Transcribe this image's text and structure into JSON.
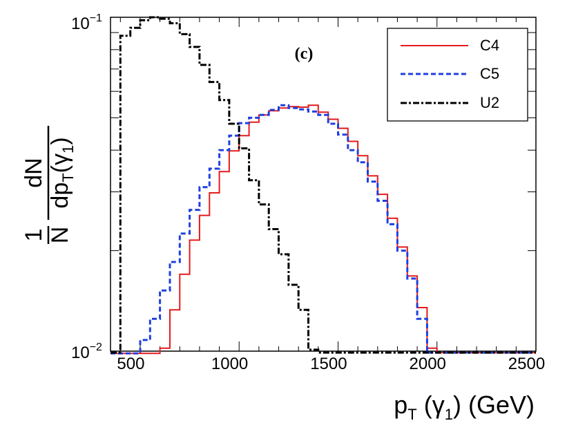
{
  "chart_data": {
    "type": "line",
    "step": true,
    "annotation": "(c)",
    "xlabel": "p_T (γ_1) (GeV)",
    "xlabel_parts": {
      "p": "p",
      "T": "T",
      "open": " (γ",
      "one": "1",
      "close": ") (GeV)"
    },
    "ylabel_parts": {
      "one": "1",
      "N": "N",
      "dN": "dN",
      "dp": "dp",
      "T": "T",
      "gamma": "(γ",
      "sub1": "1",
      "close": ")"
    },
    "xlim": [
      350,
      2500
    ],
    "ylim": [
      0.01,
      0.1
    ],
    "yscale": "log",
    "xticks": [
      500,
      1000,
      1500,
      2000,
      2500
    ],
    "xtick_labels": [
      "500",
      "1000",
      "1500",
      "2000",
      "2500"
    ],
    "ytick_labels": [
      {
        "value": 0.1,
        "base": "10",
        "exp": "−1"
      },
      {
        "value": 0.01,
        "base": "10",
        "exp": "−2"
      }
    ],
    "bin_edges": [
      350,
      400,
      450,
      500,
      550,
      600,
      650,
      700,
      750,
      800,
      850,
      900,
      950,
      1000,
      1050,
      1100,
      1150,
      1200,
      1250,
      1300,
      1350,
      1400,
      1450,
      1500,
      1550,
      1600,
      1650,
      1700,
      1750,
      1800,
      1850,
      1900,
      1950,
      2000,
      2050,
      2100,
      2150,
      2200,
      2250,
      2300,
      2350,
      2400,
      2450,
      2500
    ],
    "legend": {
      "position": "top-right"
    },
    "series": [
      {
        "name": "C4",
        "color": "#e41a1c",
        "dash": "solid",
        "values": [
          0.0098,
          0.0098,
          0.0098,
          0.0098,
          0.0098,
          0.0102,
          0.0133,
          0.017,
          0.0215,
          0.0255,
          0.0298,
          0.0345,
          0.0398,
          0.0442,
          0.0485,
          0.051,
          0.0525,
          0.0535,
          0.054,
          0.0538,
          0.0545,
          0.052,
          0.0495,
          0.0465,
          0.0425,
          0.0385,
          0.0335,
          0.0295,
          0.025,
          0.0205,
          0.0168,
          0.0135,
          0.0102,
          0.0099,
          0.0099,
          0.0099,
          0.0099,
          0.0099,
          0.0099,
          0.0099,
          0.0099,
          0.0099,
          0.0099
        ]
      },
      {
        "name": "C5",
        "color": "#1f3fe0",
        "dash": "dashed",
        "values": [
          0.0098,
          0.0098,
          0.0098,
          0.0108,
          0.0125,
          0.0152,
          0.0185,
          0.0225,
          0.0265,
          0.031,
          0.0352,
          0.04,
          0.0442,
          0.0482,
          0.05,
          0.051,
          0.0528,
          0.0545,
          0.0535,
          0.053,
          0.0522,
          0.051,
          0.048,
          0.0445,
          0.04,
          0.0368,
          0.0322,
          0.0282,
          0.024,
          0.02,
          0.0165,
          0.0125,
          0.0099,
          0.0099,
          0.0099,
          0.0099,
          0.0099,
          0.0099,
          0.0099,
          0.0099,
          0.0099,
          0.0099,
          0.0099
        ]
      },
      {
        "name": "U2",
        "color": "#000000",
        "dash": "dashdot",
        "values": [
          0.0099,
          0.088,
          0.093,
          0.098,
          0.1,
          0.099,
          0.096,
          0.089,
          0.0815,
          0.072,
          0.064,
          0.0565,
          0.048,
          0.0405,
          0.0325,
          0.0275,
          0.0232,
          0.0195,
          0.0158,
          0.0133,
          0.0101,
          0.0099,
          0.0099,
          0.0099,
          0.0099,
          0.0099,
          0.0099,
          0.0099,
          0.0099,
          0.0099,
          0.0099,
          0.0099,
          0.0099,
          0.0099,
          0.0099,
          0.0099,
          0.0099,
          0.0099,
          0.0099,
          0.0099,
          0.0099,
          0.0099,
          0.0099
        ]
      }
    ]
  }
}
